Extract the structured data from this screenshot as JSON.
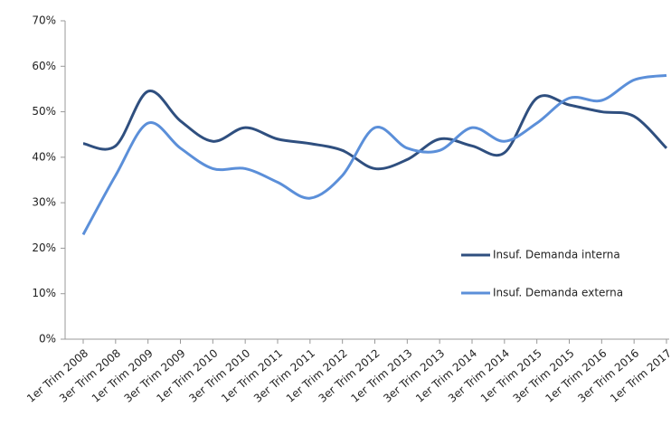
{
  "chart_data": {
    "type": "line",
    "categories": [
      "1er Trim 2008",
      "3er Trim 2008",
      "1er Trim 2009",
      "3er Trim 2009",
      "1er Trim 2010",
      "3er Trim 2010",
      "1er Trim 2011",
      "3er Trim 2011",
      "1er Trim 2012",
      "3er Trim 2012",
      "1er Trim 2013",
      "3er Trim 2013",
      "1er Trim 2014",
      "3er Trim 2014",
      "1er Trim 2015",
      "3er Trim 2015",
      "1er Trim 2016",
      "3er Trim 2016",
      "1er Trim 2017"
    ],
    "series": [
      {
        "name": "Insuf. Demanda interna",
        "color": "#2f4f7f",
        "values": [
          43,
          42.5,
          54.5,
          48,
          43.5,
          46.5,
          44,
          43,
          41.5,
          37.5,
          39.5,
          44,
          42.5,
          41,
          53,
          51.5,
          50,
          49,
          42
        ]
      },
      {
        "name": "Insuf. Demanda externa",
        "color": "#5b8fd9",
        "values": [
          23,
          36,
          47.5,
          42,
          37.5,
          37.5,
          34.5,
          31,
          36,
          46.5,
          42,
          41.5,
          46.5,
          43.5,
          47.5,
          53,
          52.5,
          57,
          58
        ]
      }
    ],
    "ylim": [
      0,
      70
    ],
    "yticks": [
      {
        "value": 0,
        "label": "0%"
      },
      {
        "value": 10,
        "label": "10%"
      },
      {
        "value": 20,
        "label": "20%"
      },
      {
        "value": 30,
        "label": "30%"
      },
      {
        "value": 40,
        "label": "40%"
      },
      {
        "value": 50,
        "label": "50%"
      },
      {
        "value": 60,
        "label": "60%"
      },
      {
        "value": 70,
        "label": "70%"
      }
    ],
    "grid": false,
    "legend": "right"
  }
}
